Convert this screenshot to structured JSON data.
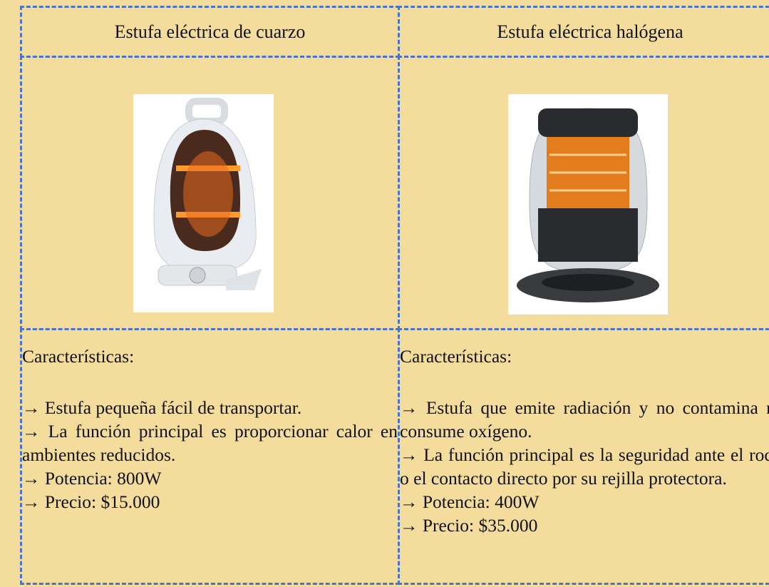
{
  "table": {
    "columns": [
      {
        "title": "Estufa eléctrica de cuarzo",
        "features_label": "Características:",
        "items": [
          "→ Estufa pequeña fácil de transportar.",
          "→ La función principal es proporcionar calor en ambientes reducidos.",
          "→ Potencia: 800W",
          "→ Precio: $15.000"
        ]
      },
      {
        "title": "Estufa eléctrica halógena",
        "features_label": "Características:",
        "items": [
          "→ Estufa que emite radiación y no contamina ni consume oxígeno.",
          "→ La función principal es la seguridad ante el roce o el contacto directo por su rejilla protectora.",
          "→ Potencia: 400W",
          "→ Precio: $35.000"
        ]
      }
    ]
  }
}
